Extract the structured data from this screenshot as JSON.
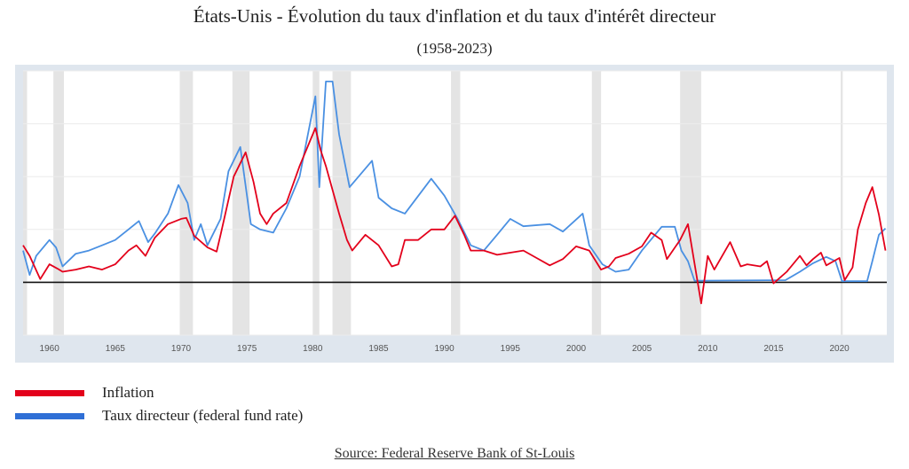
{
  "chart_data": {
    "type": "line",
    "title": "États-Unis - Évolution du taux d'inflation et du taux d'intérêt directeur",
    "subtitle": "(1958-2023)",
    "xlabel": "",
    "ylabel": "",
    "xlim": [
      1958,
      2023.6
    ],
    "ylim": [
      -5,
      20
    ],
    "grid": true,
    "x_ticks": [
      "1960",
      "1965",
      "1970",
      "1975",
      "1980",
      "1985",
      "1990",
      "1995",
      "2000",
      "2005",
      "2010",
      "2015",
      "2020"
    ],
    "legend_position": "bottom-left",
    "recession_bands": [
      [
        1957.7,
        1958.3
      ],
      [
        1960.3,
        1961.1
      ],
      [
        1969.9,
        1970.9
      ],
      [
        1973.9,
        1975.2
      ],
      [
        1980.0,
        1980.5
      ],
      [
        1981.5,
        1982.9
      ],
      [
        1990.5,
        1991.2
      ],
      [
        2001.2,
        2001.9
      ],
      [
        2007.9,
        2009.5
      ],
      [
        2020.1,
        2020.25
      ]
    ],
    "series": [
      {
        "name": "Inflation",
        "color": "#e3001b",
        "x": [
          1958,
          1958.5,
          1959.3,
          1960,
          1960.6,
          1961,
          1962,
          1963,
          1964,
          1965,
          1966,
          1966.6,
          1967.3,
          1968,
          1969,
          1970,
          1970.4,
          1971,
          1972,
          1972.7,
          1973,
          1974,
          1974.9,
          1975.5,
          1976,
          1976.5,
          1977,
          1978,
          1979,
          1980.2,
          1980.6,
          1981,
          1982,
          1982.6,
          1983,
          1984,
          1985,
          1986,
          1986.5,
          1987,
          1988,
          1989,
          1990,
          1990.8,
          1991.5,
          1992,
          1993,
          1994,
          1995,
          1996,
          1997,
          1998,
          1999,
          2000,
          2001,
          2001.9,
          2002.5,
          2003,
          2004,
          2005,
          2005.7,
          2006.5,
          2006.9,
          2007.9,
          2008.5,
          2009.5,
          2010,
          2010.5,
          2011.7,
          2012.5,
          2013,
          2014,
          2014.5,
          2015,
          2016,
          2017,
          2017.5,
          2018,
          2018.6,
          2019,
          2020,
          2020.4,
          2021,
          2021.4,
          2022,
          2022.5,
          2023,
          2023.5
        ],
        "values": [
          3.5,
          2.5,
          0.3,
          1.7,
          1.3,
          1.0,
          1.2,
          1.5,
          1.2,
          1.7,
          3.0,
          3.5,
          2.5,
          4.2,
          5.5,
          6.0,
          6.1,
          4.4,
          3.3,
          2.9,
          4.5,
          10.0,
          12.3,
          9.5,
          6.5,
          5.5,
          6.5,
          7.5,
          11.0,
          14.6,
          12.5,
          11.0,
          6.5,
          4.0,
          3.0,
          4.5,
          3.5,
          1.5,
          1.7,
          4.0,
          4.0,
          5.0,
          5.0,
          6.3,
          4.5,
          3.0,
          3.0,
          2.6,
          2.8,
          3.0,
          2.3,
          1.6,
          2.2,
          3.4,
          3.0,
          1.2,
          1.5,
          2.3,
          2.7,
          3.4,
          4.7,
          4.0,
          2.2,
          4.0,
          5.5,
          -2.0,
          2.5,
          1.2,
          3.8,
          1.5,
          1.7,
          1.5,
          2.0,
          -0.1,
          1.0,
          2.5,
          1.6,
          2.2,
          2.8,
          1.6,
          2.3,
          0.2,
          1.4,
          5.0,
          7.5,
          9.0,
          6.4,
          3.0
        ]
      },
      {
        "name": "Taux directeur (federal fund rate)",
        "color": "#4a90e2",
        "x": [
          1958,
          1958.5,
          1959,
          1960,
          1960.5,
          1961,
          1962,
          1963,
          1964,
          1965,
          1966,
          1966.8,
          1967.5,
          1968,
          1969,
          1969.8,
          1970.5,
          1971,
          1971.5,
          1972,
          1973,
          1973.6,
          1974.5,
          1975.3,
          1976,
          1977,
          1978,
          1979,
          1980.2,
          1980.5,
          1981,
          1981.5,
          1982,
          1982.8,
          1984.5,
          1985,
          1986,
          1987,
          1989,
          1990,
          1991,
          1992,
          1993,
          1994,
          1995,
          1996,
          1998,
          1999,
          2000.5,
          2001,
          2002,
          2003,
          2004,
          2005,
          2006.5,
          2007.5,
          2008,
          2008.5,
          2009,
          2015.9,
          2017,
          2018,
          2019,
          2019.7,
          2020.2,
          2022.1,
          2022.5,
          2023,
          2023.5
        ],
        "values": [
          3.0,
          0.7,
          2.5,
          4.0,
          3.3,
          1.5,
          2.7,
          3.0,
          3.5,
          4.0,
          5.0,
          5.8,
          3.8,
          4.6,
          6.5,
          9.2,
          7.5,
          4.0,
          5.5,
          3.5,
          6.0,
          10.5,
          12.8,
          5.5,
          5.0,
          4.7,
          7.0,
          10.0,
          17.6,
          9.0,
          19.0,
          19.0,
          14.0,
          9.0,
          11.5,
          8.0,
          7.0,
          6.5,
          9.8,
          8.2,
          6.0,
          3.5,
          3.0,
          4.5,
          6.0,
          5.3,
          5.5,
          4.8,
          6.5,
          3.5,
          1.7,
          1.0,
          1.2,
          3.0,
          5.25,
          5.25,
          3.0,
          2.0,
          0.15,
          0.2,
          1.0,
          1.8,
          2.4,
          2.0,
          0.1,
          0.1,
          2.0,
          4.5,
          5.1
        ]
      }
    ]
  },
  "legend": [
    {
      "label": "Inflation",
      "color": "#e3001b"
    },
    {
      "label": "Taux directeur (federal fund rate)",
      "color": "#2f6fd6"
    }
  ],
  "source": "Source: Federal Reserve Bank of St-Louis"
}
